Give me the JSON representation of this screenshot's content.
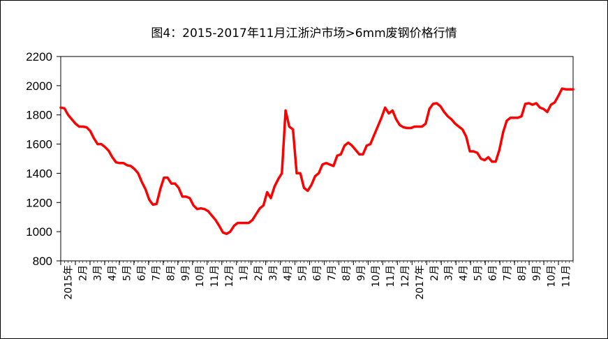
{
  "chart_data": {
    "type": "line",
    "title": "图4：2015-2017年11月江浙沪市场>6mm废钢价格行情",
    "xlabel": "",
    "ylabel": "",
    "ylim": [
      800,
      2200
    ],
    "yticks": [
      800,
      1000,
      1200,
      1400,
      1600,
      1800,
      2000,
      2200
    ],
    "grid": false,
    "legend": "none",
    "x_labels": [
      "2015年",
      "2月",
      "3月",
      "4月",
      "5月",
      "6月",
      "7月",
      "8月",
      "9月",
      "10月",
      "11月",
      "12月",
      "1月",
      "2月",
      "3月",
      "4月",
      "5月",
      "6月",
      "7月",
      "8月",
      "9月",
      "10月",
      "11月",
      "12月",
      "2017年",
      "2月",
      "3月",
      "4月",
      "5月",
      "6月",
      "7月",
      "8月",
      "9月",
      "10月",
      "11月"
    ],
    "series": [
      {
        "color": "#ff0000",
        "values": [
          1850,
          1845,
          1800,
          1770,
          1740,
          1720,
          1720,
          1715,
          1690,
          1640,
          1600,
          1600,
          1580,
          1555,
          1510,
          1475,
          1470,
          1470,
          1455,
          1450,
          1430,
          1400,
          1340,
          1290,
          1220,
          1185,
          1190,
          1290,
          1370,
          1370,
          1330,
          1330,
          1300,
          1240,
          1240,
          1230,
          1180,
          1155,
          1160,
          1155,
          1140,
          1110,
          1080,
          1040,
          995,
          985,
          1000,
          1040,
          1060,
          1060,
          1060,
          1060,
          1080,
          1120,
          1160,
          1180,
          1270,
          1230,
          1310,
          1360,
          1400,
          1830,
          1720,
          1700,
          1400,
          1400,
          1300,
          1280,
          1320,
          1380,
          1400,
          1460,
          1470,
          1460,
          1450,
          1520,
          1530,
          1590,
          1610,
          1590,
          1560,
          1530,
          1530,
          1590,
          1600,
          1660,
          1720,
          1780,
          1850,
          1810,
          1830,
          1770,
          1730,
          1715,
          1710,
          1710,
          1720,
          1720,
          1720,
          1740,
          1840,
          1875,
          1880,
          1860,
          1820,
          1790,
          1770,
          1740,
          1720,
          1700,
          1650,
          1550,
          1550,
          1540,
          1500,
          1490,
          1510,
          1480,
          1480,
          1560,
          1680,
          1760,
          1780,
          1780,
          1780,
          1790,
          1875,
          1880,
          1870,
          1880,
          1850,
          1840,
          1820,
          1870,
          1885,
          1930,
          1980,
          1975,
          1975,
          1975
        ]
      }
    ]
  }
}
